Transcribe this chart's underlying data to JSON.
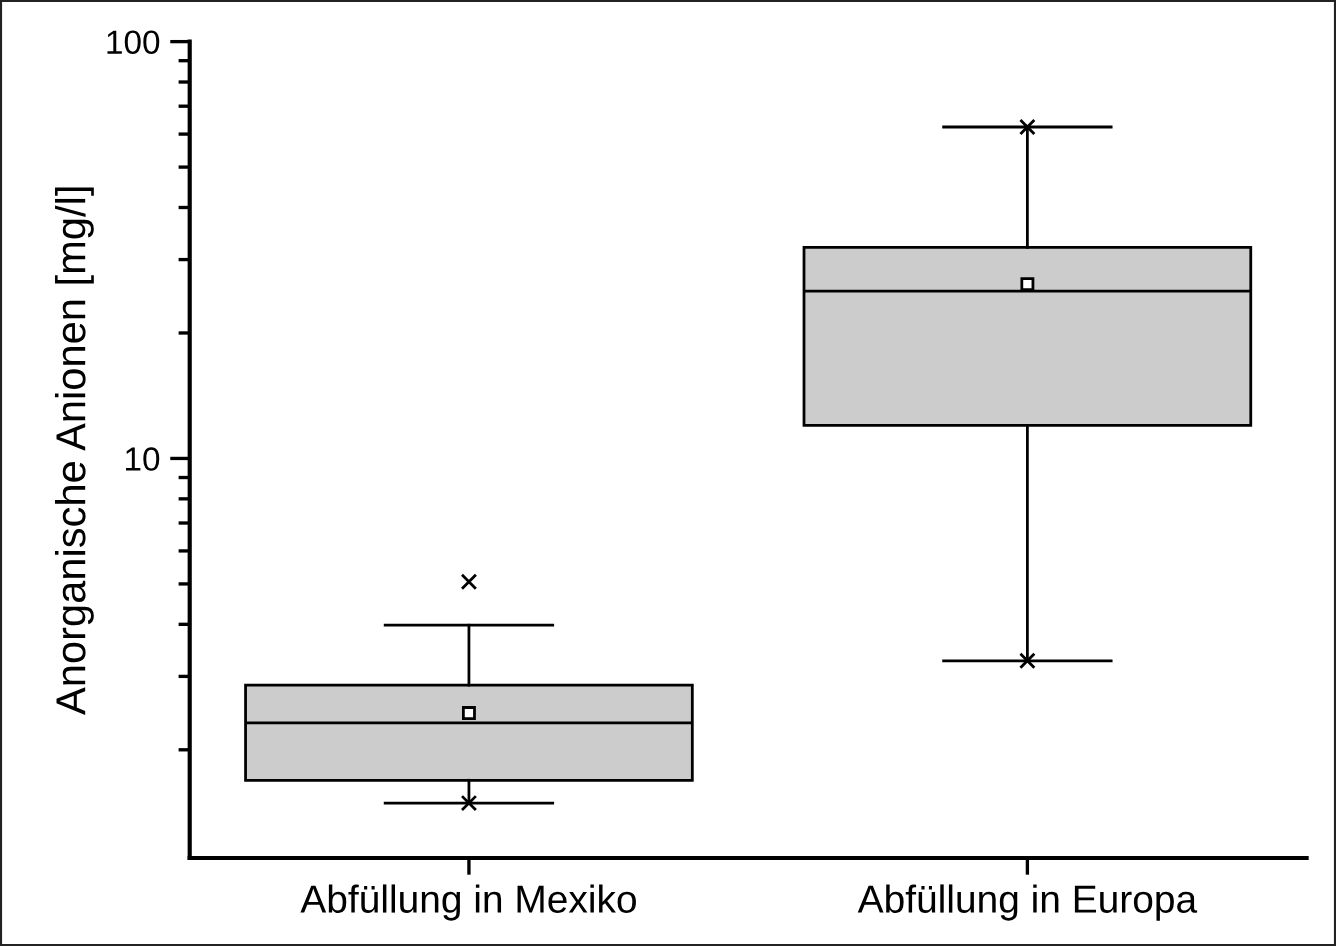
{
  "chart_data": {
    "type": "box",
    "ylabel": "Anorganische Anionen [mg/l]",
    "categories": [
      "Abfüllung in Mexiko",
      "Abfüllung in Europa"
    ],
    "color": "#cccccc",
    "log": "y",
    "ylim": [
      1.1,
      100
    ],
    "yticks": [
      {
        "value": 2,
        "label": null
      },
      {
        "value": 3,
        "label": null
      },
      {
        "value": 4,
        "label": null
      },
      {
        "value": 5,
        "label": null
      },
      {
        "value": 6,
        "label": null
      },
      {
        "value": 7,
        "label": null
      },
      {
        "value": 8,
        "label": null
      },
      {
        "value": 9,
        "label": null
      },
      10,
      {
        "value": 20,
        "label": null
      },
      {
        "value": 30,
        "label": null
      },
      {
        "value": 40,
        "label": null
      },
      {
        "value": 50,
        "label": null
      },
      {
        "value": 60,
        "label": null
      },
      {
        "value": 70,
        "label": null
      },
      {
        "value": 80,
        "label": null
      },
      {
        "value": 90,
        "label": null
      },
      100
    ],
    "boxes": [
      {
        "low": 1.49,
        "q1": 1.69,
        "median": 2.32,
        "q3": 2.86,
        "high": 3.98,
        "mean": 2.45,
        "outliers": [
          5.06,
          1.49
        ]
      },
      {
        "low": 3.27,
        "q1": 12.0,
        "median": 25.2,
        "q3": 32.1,
        "high": 62.4,
        "mean": 26.2,
        "outliers": [
          62.4,
          3.27
        ]
      }
    ]
  }
}
